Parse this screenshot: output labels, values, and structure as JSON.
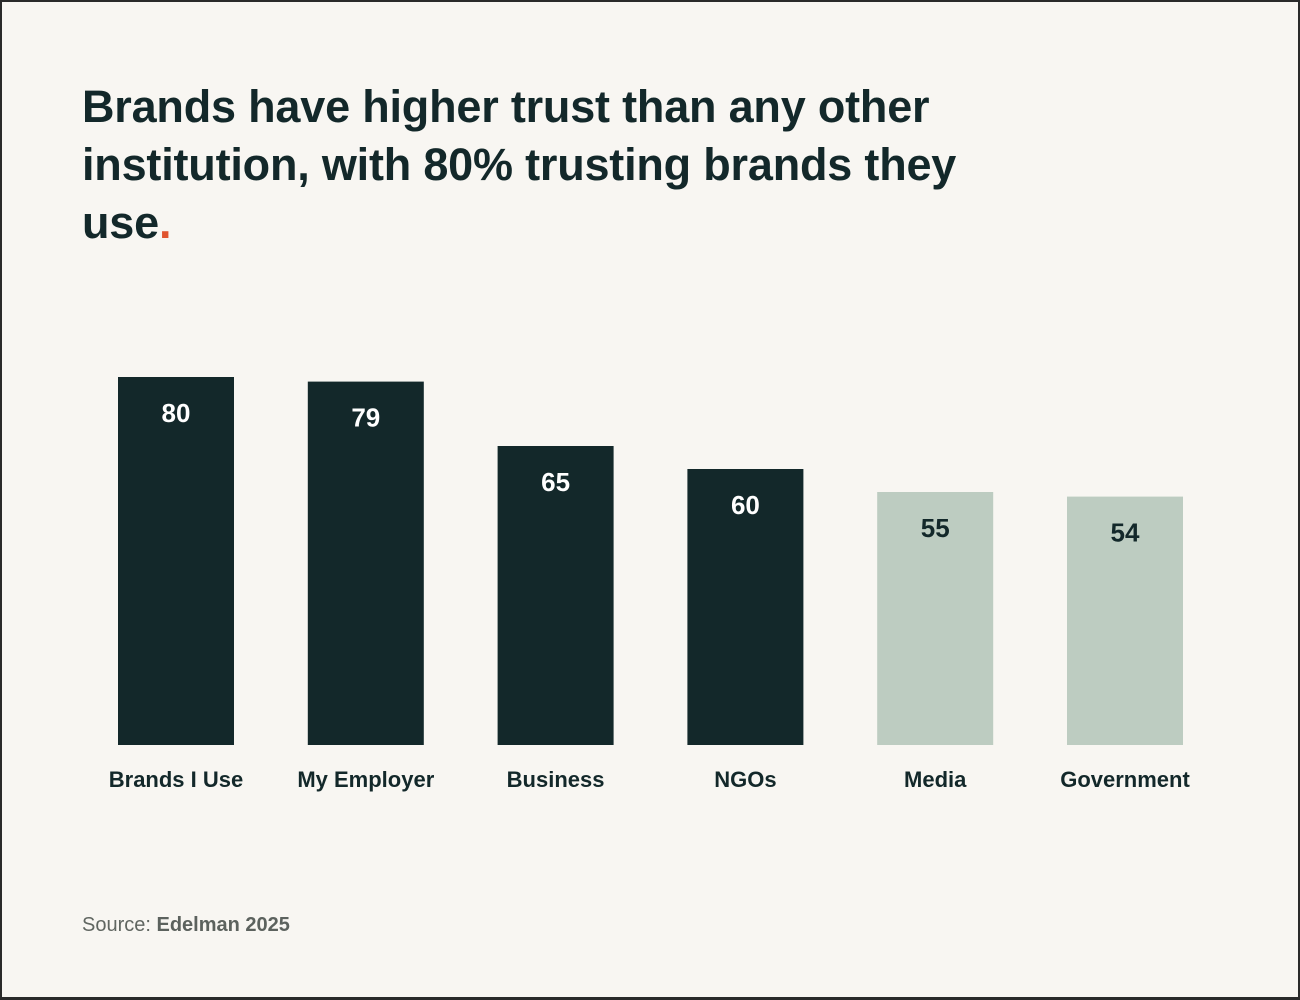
{
  "title": {
    "text": "Brands have higher trust than any other institution, with 80% trusting brands they use",
    "accent_dot": "."
  },
  "source": {
    "label": "Source:",
    "value": "Edelman 2025"
  },
  "colors": {
    "background": "#f8f6f2",
    "dark_bar": "#13282a",
    "light_bar": "#bdccc1",
    "accent": "#e0542f"
  },
  "chart_data": {
    "type": "bar",
    "title": "Brands have higher trust than any other institution, with 80% trusting brands they use.",
    "categories": [
      "Brands I Use",
      "My Employer",
      "Business",
      "NGOs",
      "Media",
      "Government"
    ],
    "values": [
      80,
      79,
      65,
      60,
      55,
      54
    ],
    "bar_colors": [
      "#13282a",
      "#13282a",
      "#13282a",
      "#13282a",
      "#bdccc1",
      "#bdccc1"
    ],
    "label_colors": [
      "#ffffff",
      "#ffffff",
      "#ffffff",
      "#ffffff",
      "#13282a",
      "#13282a"
    ],
    "xlabel": "",
    "ylabel": "",
    "ylim": [
      0,
      80
    ],
    "grid": false,
    "legend": "none"
  }
}
